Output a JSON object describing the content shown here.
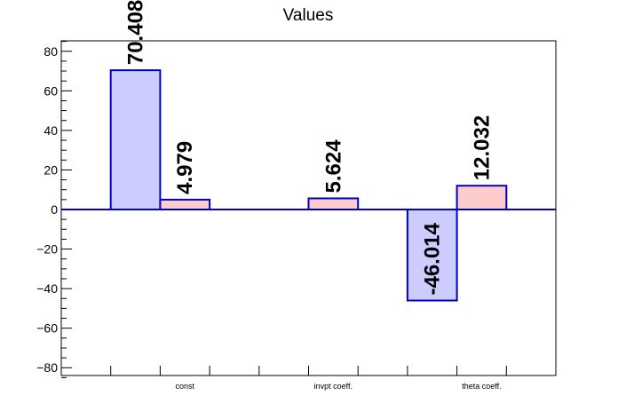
{
  "chart_data": {
    "type": "bar",
    "title": "Values",
    "xlabel": "",
    "ylabel": "",
    "ylim": [
      -85,
      85
    ],
    "yticks": [
      -80,
      -60,
      -40,
      -20,
      0,
      20,
      40,
      60,
      80
    ],
    "tick_labels": [
      "−80",
      "−60",
      "−40",
      "−20",
      "0",
      "20",
      "40",
      "60",
      "80"
    ],
    "categories": [
      "const",
      "invpt coeff.",
      "theta coeff."
    ],
    "grid": false,
    "legend": "none",
    "series": [
      {
        "values": [
          70.408,
          null,
          -46.014
        ],
        "labels": [
          "70.408",
          "",
          "-46.014"
        ],
        "fill": "#ccccff",
        "stroke": "#0000cc"
      },
      {
        "values": [
          4.979,
          5.624,
          12.032
        ],
        "labels": [
          "4.979",
          "5.624",
          "12.032"
        ],
        "fill": "#ffcccc",
        "stroke": "#0000cc"
      }
    ]
  }
}
